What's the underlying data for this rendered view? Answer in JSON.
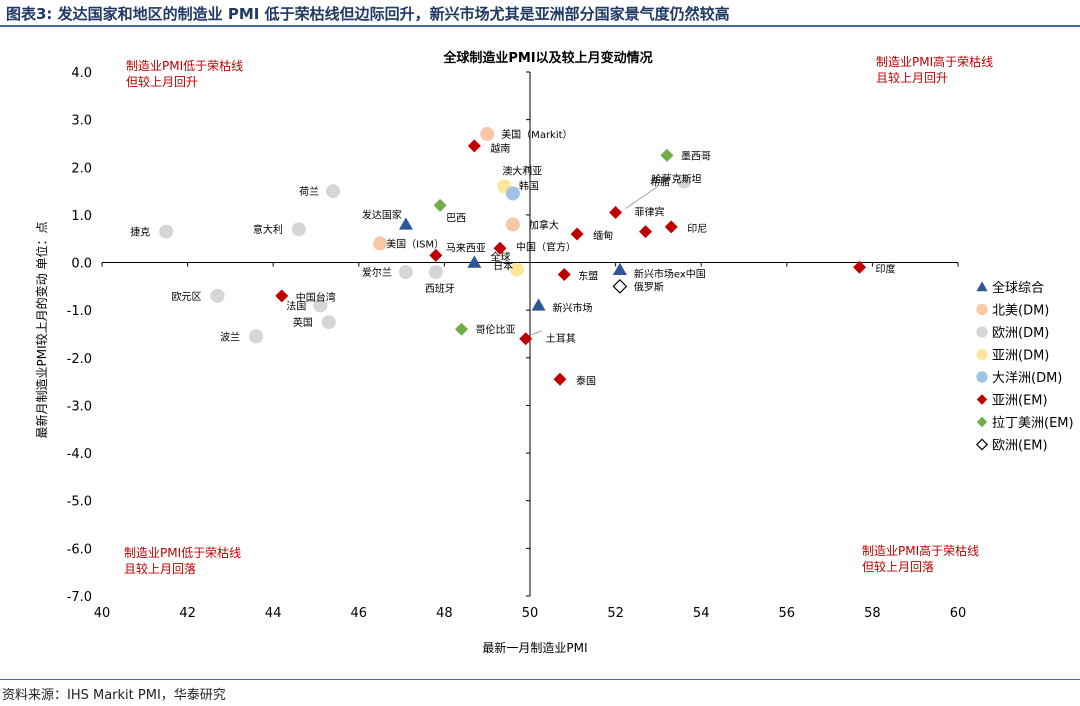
{
  "header": {
    "title": "图表3:  发达国家和地区的制造业 PMI 低于荣枯线但边际回升，新兴市场尤其是亚洲部分国家景气度仍然较高"
  },
  "footer": {
    "source": "资料来源：IHS Markit PMI，华泰研究"
  },
  "chart_data": {
    "type": "scatter",
    "title": "全球制造业PMI以及较上月变动情况",
    "xlabel": "最新一月制造业PMI",
    "ylabel": "最新月制造业PMI较上月的变动  单位：点",
    "xlim": [
      40,
      60
    ],
    "ylim": [
      -7,
      4
    ],
    "x_ticks": [
      "40",
      "42",
      "44",
      "46",
      "48",
      "50",
      "52",
      "54",
      "56",
      "58",
      "60"
    ],
    "y_ticks": [
      "4.0",
      "3.0",
      "2.0",
      "1.0",
      "0.0",
      "-1.0",
      "-2.0",
      "-3.0",
      "-4.0",
      "-5.0",
      "-6.0",
      "-7.0"
    ],
    "quadrant_labels": {
      "top_left": [
        "制造业PMI低于荣枯线",
        "但较上月回升"
      ],
      "top_right": [
        "制造业PMI高于荣枯线",
        "且较上月回升"
      ],
      "bottom_left": [
        "制造业PMI低于荣枯线",
        "且较上月回落"
      ],
      "bottom_right": [
        "制造业PMI高于荣枯线",
        "但较上月回落"
      ]
    },
    "legend_position": "right",
    "series": [
      {
        "name": "全球综合",
        "marker": "triangle",
        "color": "#2e5597",
        "points": [
          {
            "label": "全球",
            "x": 48.7,
            "y": 0.0
          },
          {
            "label": "发达国家",
            "x": 47.1,
            "y": 0.8
          },
          {
            "label": "新兴市场",
            "x": 50.2,
            "y": -0.9
          },
          {
            "label": "新兴市场ex中国",
            "x": 52.1,
            "y": -0.15
          }
        ]
      },
      {
        "name": "北美(DM)",
        "marker": "circle",
        "color": "#f7c7a6",
        "points": [
          {
            "label": "美国（Markit）",
            "x": 49.0,
            "y": 2.7
          },
          {
            "label": "加拿大",
            "x": 49.6,
            "y": 0.8
          },
          {
            "label": "美国（ISM）",
            "x": 46.5,
            "y": 0.4
          }
        ]
      },
      {
        "name": "欧洲(DM)",
        "marker": "circle",
        "color": "#d6d6d6",
        "points": [
          {
            "label": "荷兰",
            "x": 45.4,
            "y": 1.5
          },
          {
            "label": "捷克",
            "x": 41.5,
            "y": 0.65
          },
          {
            "label": "意大利",
            "x": 44.6,
            "y": 0.7
          },
          {
            "label": "希腊",
            "x": 53.6,
            "y": 1.7
          },
          {
            "label": "爱尔兰",
            "x": 47.1,
            "y": -0.2
          },
          {
            "label": "西班牙",
            "x": 47.8,
            "y": -0.2
          },
          {
            "label": "欧元区",
            "x": 42.7,
            "y": -0.7
          },
          {
            "label": "法国",
            "x": 45.1,
            "y": -0.9
          },
          {
            "label": "英国",
            "x": 45.3,
            "y": -1.25
          },
          {
            "label": "波兰",
            "x": 43.6,
            "y": -1.55
          }
        ]
      },
      {
        "name": "亚洲(DM)",
        "marker": "circle",
        "color": "#fde69a",
        "points": [
          {
            "label": "澳大利亚",
            "x": 49.4,
            "y": 1.6
          },
          {
            "label": "日本",
            "x": 49.7,
            "y": -0.15
          }
        ]
      },
      {
        "name": "大洋洲(DM)",
        "marker": "circle",
        "color": "#9dc3e6",
        "points": [
          {
            "label": "韩国",
            "x": 49.6,
            "y": 1.45
          }
        ]
      },
      {
        "name": "亚洲(EM)",
        "marker": "diamond",
        "color": "#c00000",
        "points": [
          {
            "label": "越南",
            "x": 48.7,
            "y": 2.45
          },
          {
            "label": "哈萨克斯坦",
            "x": 52.0,
            "y": 1.05
          },
          {
            "label": "菲律宾",
            "x": 52.7,
            "y": 0.65
          },
          {
            "label": "印尼",
            "x": 53.3,
            "y": 0.75
          },
          {
            "label": "缅甸",
            "x": 51.1,
            "y": 0.6
          },
          {
            "label": "中国（官方）",
            "x": 49.3,
            "y": 0.3
          },
          {
            "label": "马来西亚",
            "x": 47.8,
            "y": 0.15
          },
          {
            "label": "东盟",
            "x": 50.8,
            "y": -0.25
          },
          {
            "label": "印度",
            "x": 57.7,
            "y": -0.1
          },
          {
            "label": "中国台湾",
            "x": 44.2,
            "y": -0.7
          },
          {
            "label": "土耳其",
            "x": 49.9,
            "y": -1.6
          },
          {
            "label": "泰国",
            "x": 50.7,
            "y": -2.45
          }
        ]
      },
      {
        "name": "拉丁美洲(EM)",
        "marker": "diamond",
        "color": "#70ad47",
        "points": [
          {
            "label": "墨西哥",
            "x": 53.2,
            "y": 2.25
          },
          {
            "label": "巴西",
            "x": 47.9,
            "y": 1.2
          },
          {
            "label": "哥伦比亚",
            "x": 48.4,
            "y": -1.4
          }
        ]
      },
      {
        "name": "欧洲(EM)",
        "marker": "diamond-open",
        "color": "#000000",
        "points": [
          {
            "label": "俄罗斯",
            "x": 52.1,
            "y": -0.5
          }
        ]
      }
    ]
  }
}
